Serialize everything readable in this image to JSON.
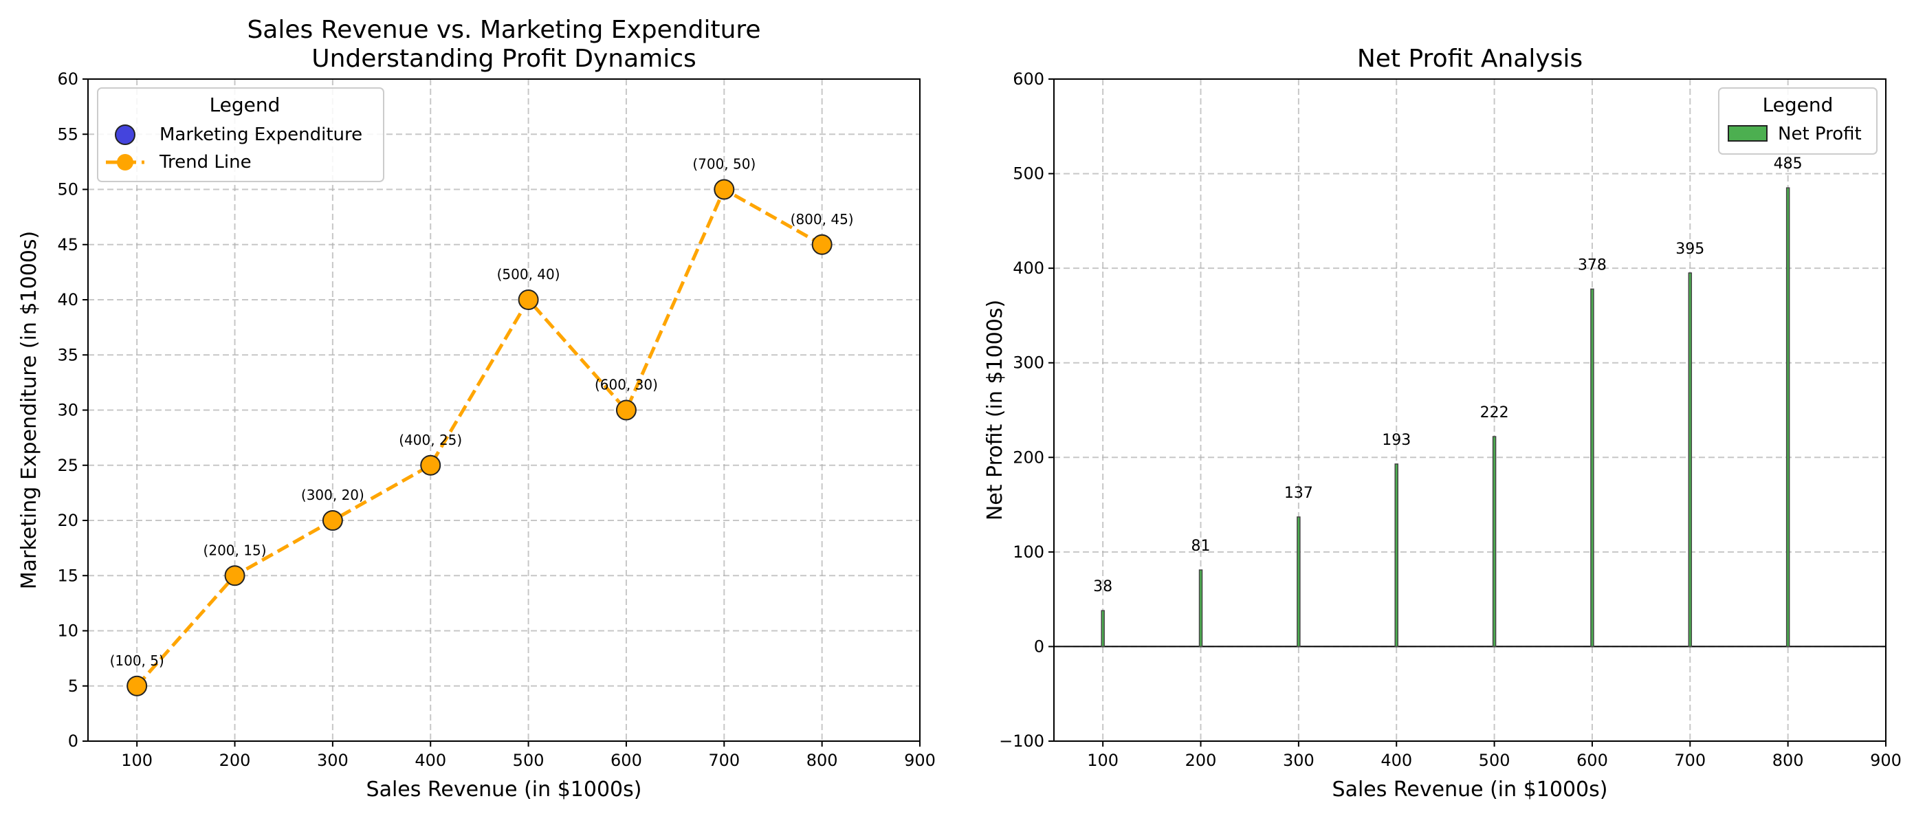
{
  "chart_data": [
    {
      "type": "scatter",
      "title": "Sales Revenue vs. Marketing Expenditure\nUnderstanding Profit Dynamics",
      "xlabel": "Sales Revenue (in $1000s)",
      "ylabel": "Marketing Expenditure (in $1000s)",
      "xlim": [
        50,
        900
      ],
      "ylim": [
        0,
        60
      ],
      "xticks": [
        100,
        200,
        300,
        400,
        500,
        600,
        700,
        800,
        900
      ],
      "yticks": [
        0,
        5,
        10,
        15,
        20,
        25,
        30,
        35,
        40,
        45,
        50,
        55,
        60
      ],
      "grid": true,
      "legend": {
        "title": "Legend",
        "placement": "top-left",
        "entries": [
          "Marketing Expenditure",
          "Trend Line"
        ]
      },
      "x": [
        100,
        200,
        300,
        400,
        500,
        600,
        700,
        800
      ],
      "series": [
        {
          "name": "Marketing Expenditure",
          "values": [
            5,
            15,
            20,
            25,
            40,
            30,
            50,
            45
          ],
          "color": "#4444dd"
        },
        {
          "name": "Trend Line",
          "values": [
            5,
            15,
            20,
            25,
            40,
            30,
            50,
            45
          ],
          "color": "#ffa500",
          "style": "dashed"
        }
      ],
      "point_color": "#ffa500",
      "annotations": [
        "(100, 5)",
        "(200, 15)",
        "(300, 20)",
        "(400, 25)",
        "(500, 40)",
        "(600, 30)",
        "(700, 50)",
        "(800, 45)"
      ]
    },
    {
      "type": "bar",
      "title": "Net Profit Analysis",
      "xlabel": "Sales Revenue (in $1000s)",
      "ylabel": "Net Profit (in $1000s)",
      "xlim": [
        50,
        900
      ],
      "ylim": [
        -100,
        600
      ],
      "xticks": [
        100,
        200,
        300,
        400,
        500,
        600,
        700,
        800,
        900
      ],
      "yticks": [
        -100,
        0,
        100,
        200,
        300,
        400,
        500,
        600
      ],
      "grid": true,
      "legend": {
        "title": "Legend",
        "placement": "top-right",
        "entries": [
          "Net Profit"
        ]
      },
      "x": [
        100,
        200,
        300,
        400,
        500,
        600,
        700,
        800
      ],
      "series": [
        {
          "name": "Net Profit",
          "values": [
            38,
            81,
            137,
            193,
            222,
            378,
            395,
            485
          ],
          "color": "#4caf50"
        }
      ],
      "data_labels": [
        "38",
        "81",
        "137",
        "193",
        "222",
        "378",
        "395",
        "485"
      ]
    }
  ]
}
